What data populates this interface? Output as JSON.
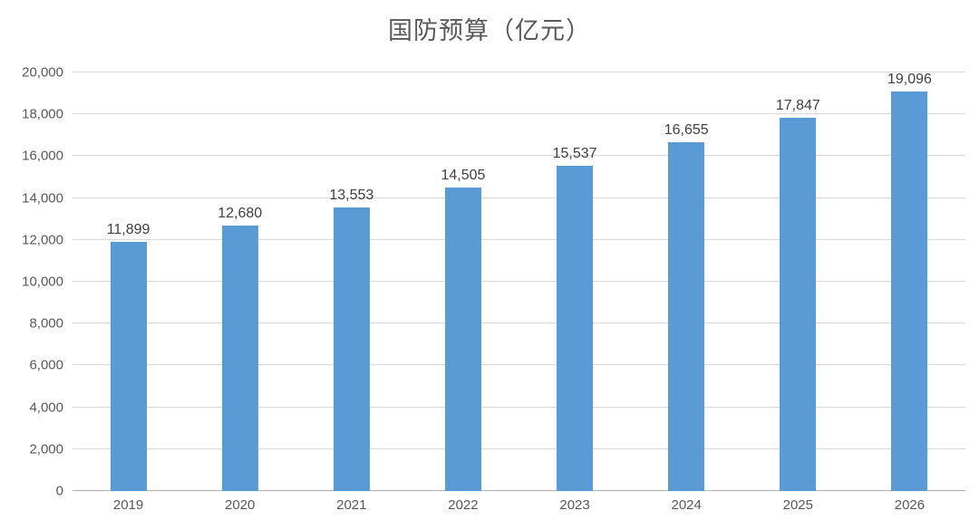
{
  "chart_data": {
    "type": "bar",
    "title": "国防预算（亿元）",
    "categories": [
      "2019",
      "2020",
      "2021",
      "2022",
      "2023",
      "2024",
      "2025",
      "2026"
    ],
    "values": [
      11899,
      12680,
      13553,
      14505,
      15537,
      16655,
      17847,
      19096
    ],
    "value_labels": [
      "11,899",
      "12,680",
      "13,553",
      "14,505",
      "15,537",
      "16,655",
      "17,847",
      "19,096"
    ],
    "xlabel": "",
    "ylabel": "",
    "ylim": [
      0,
      20000
    ],
    "y_tick_step": 2000,
    "y_tick_labels": [
      "0",
      "2,000",
      "4,000",
      "6,000",
      "8,000",
      "10,000",
      "12,000",
      "14,000",
      "16,000",
      "18,000",
      "20,000"
    ],
    "grid": true,
    "legend": false,
    "colors": {
      "bar": "#5b9bd5",
      "gridline": "#d9d9d9",
      "axis_line": "#b3b3b3",
      "tick_text": "#595959",
      "data_label_text": "#404040",
      "title_text": "#595959",
      "background": "#ffffff"
    }
  }
}
